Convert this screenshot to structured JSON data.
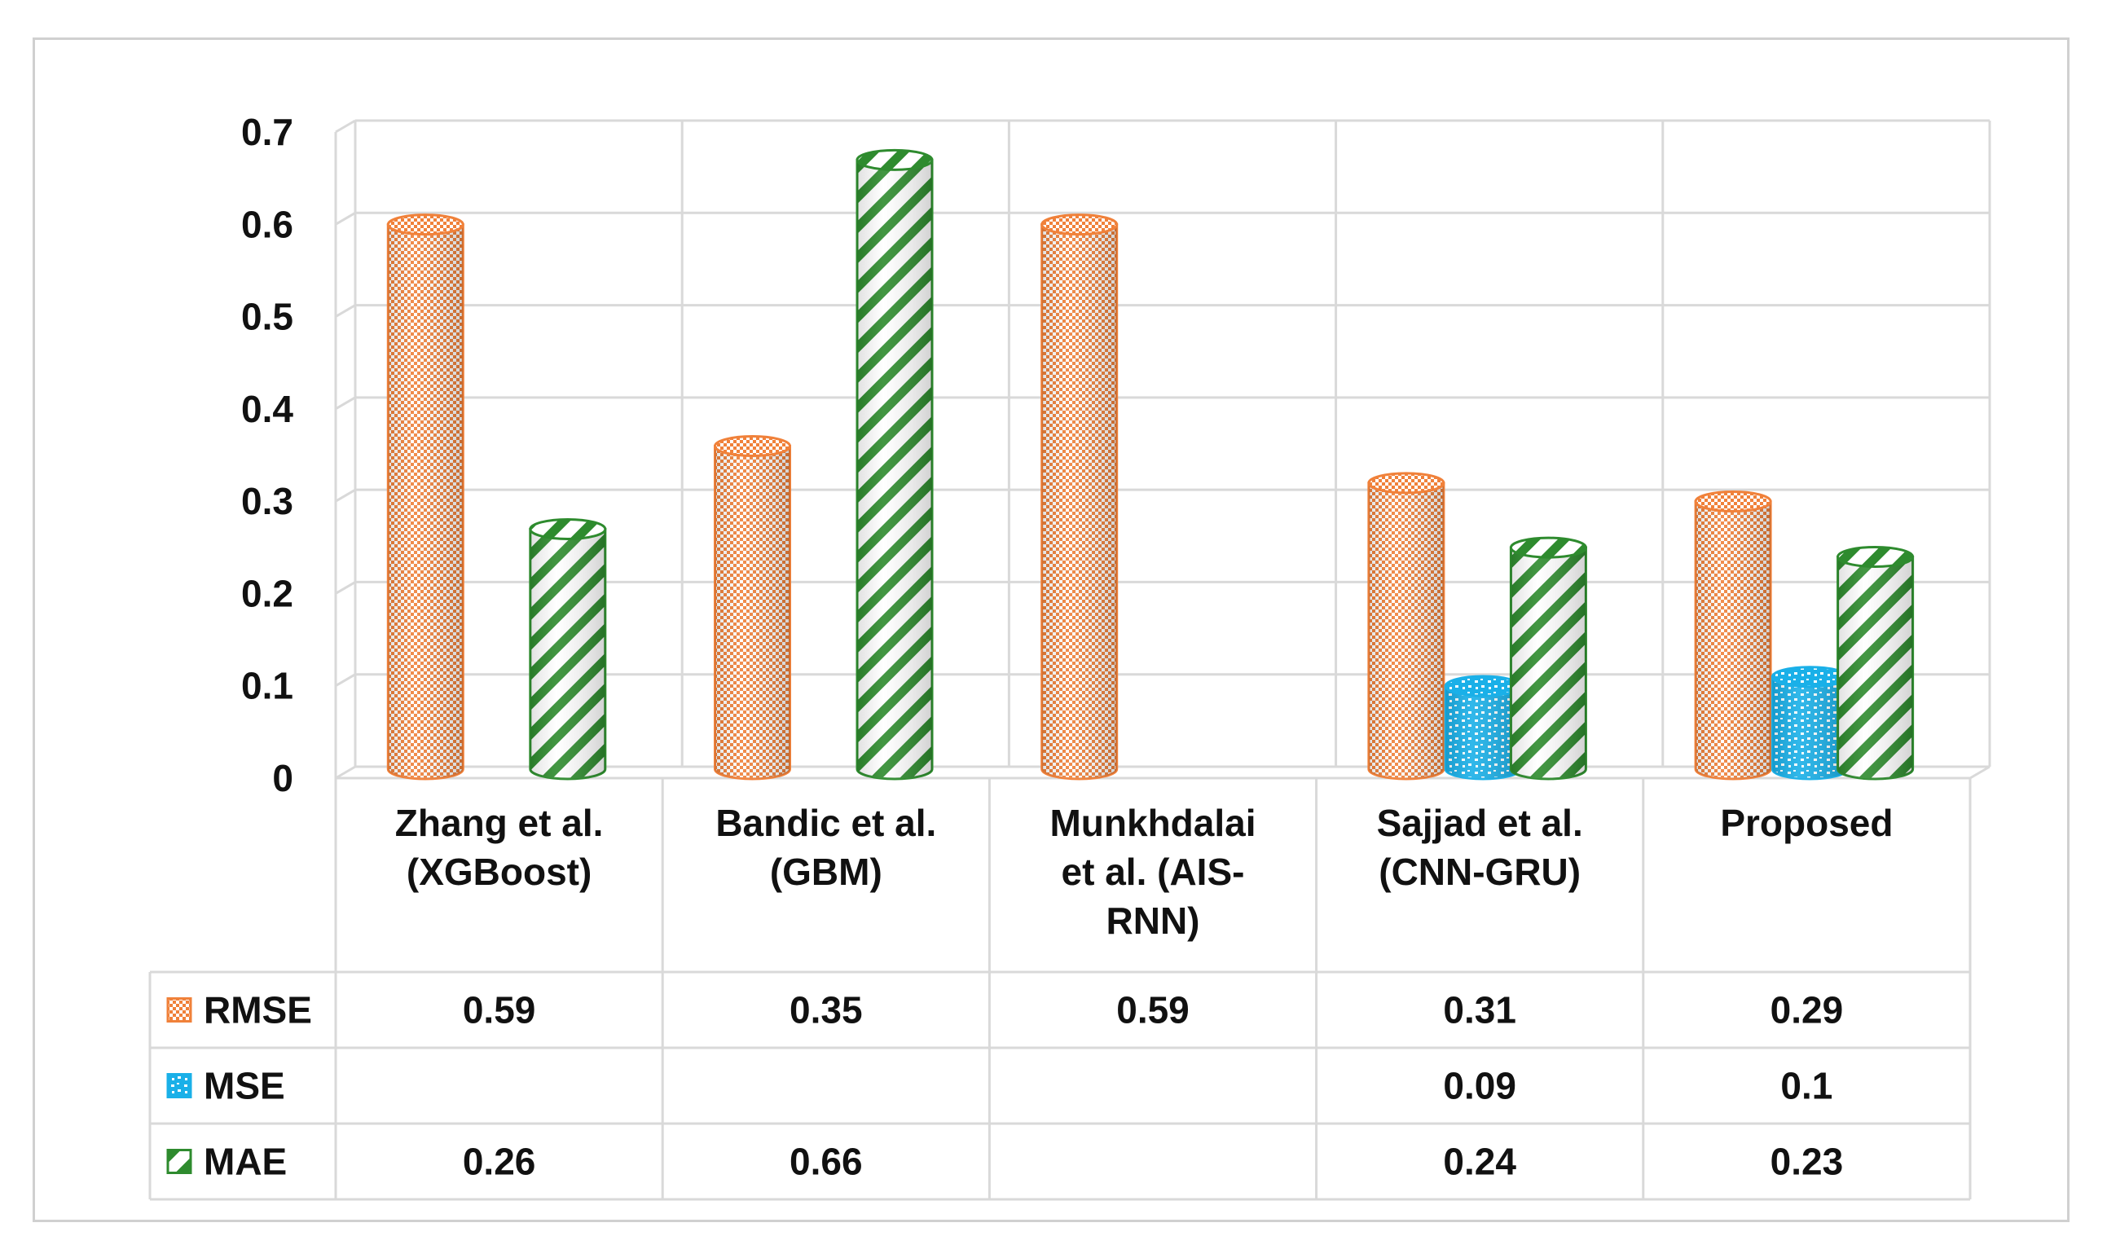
{
  "chart_data": {
    "type": "bar",
    "style": "3d-cylinder-with-data-table",
    "categories": [
      [
        "Zhang et al.",
        "(XGBoost)"
      ],
      [
        "Bandic et al.",
        "(GBM)"
      ],
      [
        "Munkhdalai",
        "et al. (AIS-",
        "RNN)"
      ],
      [
        "Sajjad et al.",
        "(CNN-GRU)"
      ],
      [
        "Proposed"
      ]
    ],
    "series": [
      {
        "name": "RMSE",
        "color": "#f0813a",
        "pattern": "checker",
        "values": [
          0.59,
          0.35,
          0.59,
          0.31,
          0.29
        ],
        "labels": [
          "0.59",
          "0.35",
          "0.59",
          "0.31",
          "0.29"
        ]
      },
      {
        "name": "MSE",
        "color": "#1ab0e8",
        "pattern": "dots",
        "values": [
          null,
          null,
          null,
          0.09,
          0.1
        ],
        "labels": [
          "",
          "",
          "",
          "0.09",
          "0.1"
        ]
      },
      {
        "name": "MAE",
        "color": "#2e8b2e",
        "pattern": "diagonal-stripes",
        "values": [
          0.26,
          0.66,
          null,
          0.24,
          0.23
        ],
        "labels": [
          "0.26",
          "0.66",
          "",
          "0.24",
          "0.23"
        ]
      }
    ],
    "ylim": [
      0,
      0.7
    ],
    "yticks": [
      0,
      0.1,
      0.2,
      0.3,
      0.4,
      0.5,
      0.6,
      0.7
    ],
    "ytick_labels": [
      "0",
      "0.1",
      "0.2",
      "0.3",
      "0.4",
      "0.5",
      "0.6",
      "0.7"
    ],
    "grid": true,
    "legend": "data-table-left"
  }
}
